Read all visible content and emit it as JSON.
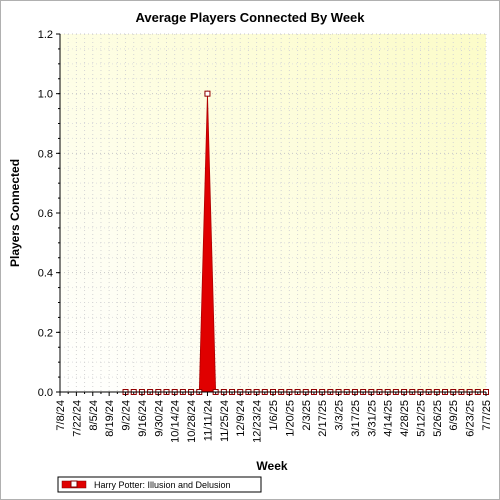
{
  "chart_data": {
    "type": "area",
    "title": "Average Players Connected By Week",
    "xlabel": "Week",
    "ylabel": "Players Connected",
    "ylim": [
      0,
      1.2
    ],
    "yticks": [
      "0.0",
      "0.2",
      "0.4",
      "0.6",
      "0.8",
      "1.0",
      "1.2"
    ],
    "grid": true,
    "legend_position": "bottom-left",
    "categories": [
      "7/8/24",
      "7/15/24",
      "7/22/24",
      "7/29/24",
      "8/5/24",
      "8/12/24",
      "8/19/24",
      "8/26/24",
      "9/2/24",
      "9/9/24",
      "9/16/24",
      "9/23/24",
      "9/30/24",
      "10/7/24",
      "10/14/24",
      "10/21/24",
      "10/28/24",
      "11/4/24",
      "11/11/24",
      "11/18/24",
      "11/25/24",
      "12/2/24",
      "12/9/24",
      "12/16/24",
      "12/23/24",
      "12/30/24",
      "1/6/25",
      "1/13/25",
      "1/20/25",
      "1/27/25",
      "2/3/25",
      "2/10/25",
      "2/17/25",
      "2/24/25",
      "3/3/25",
      "3/10/25",
      "3/17/25",
      "3/24/25",
      "3/31/25",
      "4/7/25",
      "4/14/25",
      "4/21/25",
      "4/28/25",
      "5/5/25",
      "5/12/25",
      "5/19/25",
      "5/26/25",
      "6/2/25",
      "6/9/25",
      "6/16/25",
      "6/23/25",
      "6/30/25",
      "7/7/25"
    ],
    "tick_labels": [
      "7/8/24",
      "7/22/24",
      "8/5/24",
      "8/19/24",
      "9/2/24",
      "9/16/24",
      "9/30/24",
      "10/14/24",
      "10/28/24",
      "11/11/24",
      "11/25/24",
      "12/9/24",
      "12/23/24",
      "1/6/25",
      "1/20/25",
      "2/3/25",
      "2/17/25",
      "3/3/25",
      "3/17/25",
      "3/31/25",
      "4/14/25",
      "4/28/25",
      "5/12/25",
      "5/26/25",
      "6/9/25",
      "6/23/25",
      "7/7/25"
    ],
    "series": [
      {
        "name": "Harry Potter: Illusion and Delusion",
        "color": "#e00000",
        "values": [
          null,
          null,
          null,
          null,
          null,
          null,
          null,
          null,
          0,
          0,
          0,
          0,
          0,
          0,
          0,
          0,
          0,
          0,
          1,
          0,
          0,
          0,
          0,
          0,
          0,
          0,
          0,
          0,
          0,
          0,
          0,
          0,
          0,
          0,
          0,
          0,
          0,
          0,
          0,
          0,
          0,
          0,
          0,
          0,
          0,
          0,
          0,
          0,
          0,
          0,
          0,
          0,
          0
        ]
      }
    ]
  }
}
